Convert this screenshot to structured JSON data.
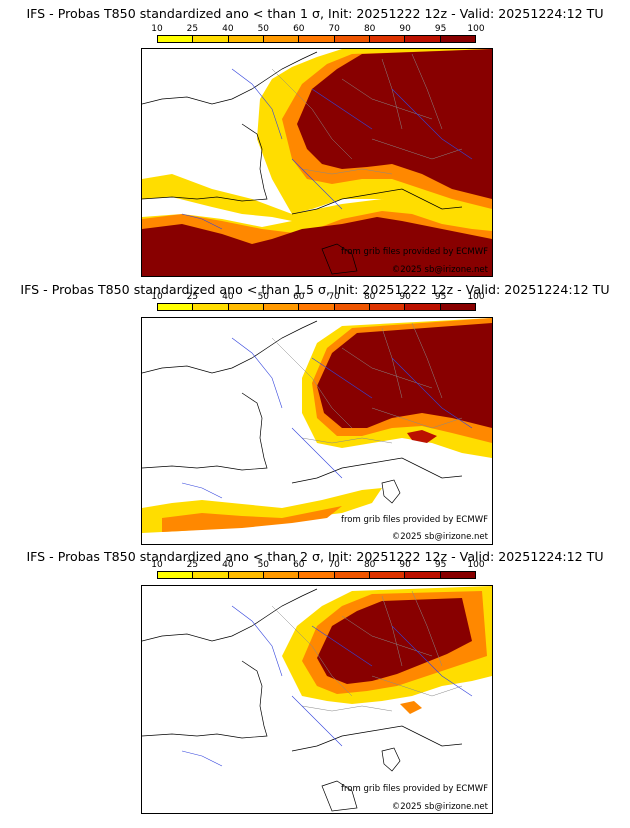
{
  "panels": [
    {
      "title": "IFS - Probas T850  standardized ano < than 1 σ, Init: 20251222 12z - Valid: 20251224:12 TU"
    },
    {
      "title": "IFS - Probas T850  standardized ano < than 1.5 σ, Init: 20251222 12z - Valid: 20251224:12 TU"
    },
    {
      "title": "IFS - Probas T850  standardized ano < than 2 σ, Init: 20251222 12z - Valid: 20251224:12 TU"
    }
  ],
  "colorbar": {
    "ticks": [
      "10",
      "25",
      "40",
      "50",
      "60",
      "70",
      "80",
      "90",
      "95",
      "100"
    ],
    "colors": [
      "#ffff00",
      "#ffdd00",
      "#ffbb00",
      "#ff9900",
      "#ff7700",
      "#ee5500",
      "#dd3300",
      "#bb1100",
      "#880000"
    ]
  },
  "credits": {
    "source": "from grib files provided by ECMWF",
    "copyright": "©2025 sb@irizone.net"
  }
}
